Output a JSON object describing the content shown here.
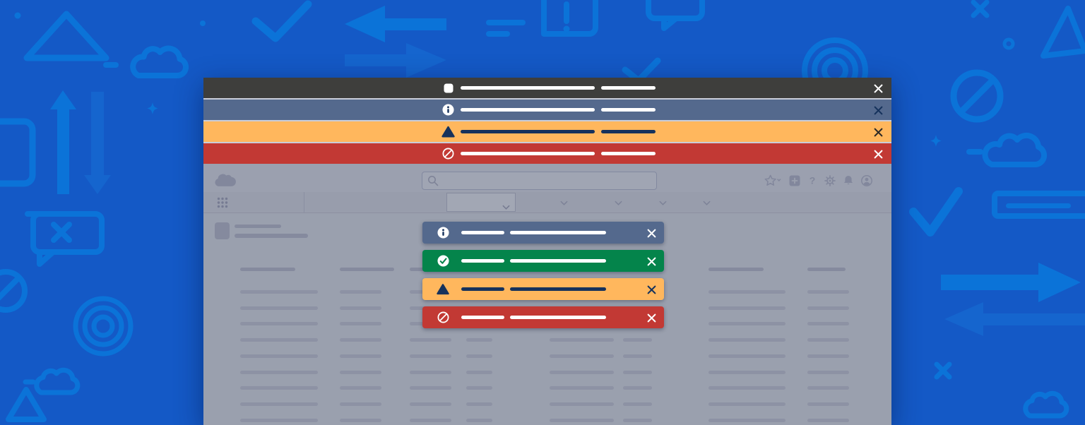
{
  "page": {
    "background_color": "#1459C6",
    "decor_color": "#0B73D8",
    "decor_color_alt": "#1565CE"
  },
  "app_window": {
    "dimmed": true,
    "surface_color": "#9BA0AF",
    "content_color": "#9AA0AE",
    "muted_icon_color": "#82879C",
    "header": {
      "logo_icon": "cloud-logo",
      "search": {
        "icon": "search-icon",
        "value": ""
      },
      "utility_icons": [
        "favorites-star-icon",
        "add-box-icon",
        "help-icon",
        "setup-gear-icon",
        "notifications-bell-icon",
        "user-avatar-icon"
      ],
      "help_glyph": "?"
    },
    "nav": {
      "launcher_icon": "app-launcher-waffle-icon",
      "tabs": 5,
      "selected_tab": 1
    }
  },
  "alert_banners": [
    {
      "type": "default",
      "bg": "#3E3E3C",
      "icon": "square-icon",
      "icon_color": "#FFFFFF",
      "bar_color": "#FFFFFF",
      "close_color": "#FFFFFF"
    },
    {
      "type": "info",
      "bg": "#54698D",
      "icon": "info-icon",
      "icon_color": "#FFFFFF",
      "glyph_color": "#16325C",
      "bar_color": "#FFFFFF",
      "close_color": "#16325C"
    },
    {
      "type": "warning",
      "bg": "#FFB75D",
      "icon": "warning-triangle-icon",
      "icon_color": "#16325C",
      "bar_color": "#16325C",
      "close_color": "#2E2A26"
    },
    {
      "type": "error",
      "bg": "#C23934",
      "icon": "ban-icon",
      "icon_color": "#FFFFFF",
      "bar_color": "#FFFFFF",
      "close_color": "#FFFFFF"
    }
  ],
  "toasts": [
    {
      "type": "info",
      "bg": "#54698D",
      "icon": "info-icon",
      "icon_color": "#FFFFFF",
      "glyph_color": "#16325C",
      "bar_color": "#FFFFFF",
      "close_color": "#FFFFFF"
    },
    {
      "type": "success",
      "bg": "#04844B",
      "icon": "check-circle-icon",
      "icon_color": "#FFFFFF",
      "glyph_color": "#04844B",
      "bar_color": "#FFFFFF",
      "close_color": "#FFFFFF"
    },
    {
      "type": "warning",
      "bg": "#FFB75D",
      "icon": "warning-triangle-icon",
      "icon_color": "#16325C",
      "bar_color": "#16325C",
      "close_color": "#16325C"
    },
    {
      "type": "error",
      "bg": "#C23934",
      "icon": "ban-icon",
      "icon_color": "#FFFFFF",
      "bar_color": "#FFFFFF",
      "close_color": "#FFFFFF"
    }
  ],
  "skeleton": {
    "rows": 9,
    "columns": 8,
    "bar_color": "#8D92A4",
    "header_bar_color": "#858A9E"
  }
}
